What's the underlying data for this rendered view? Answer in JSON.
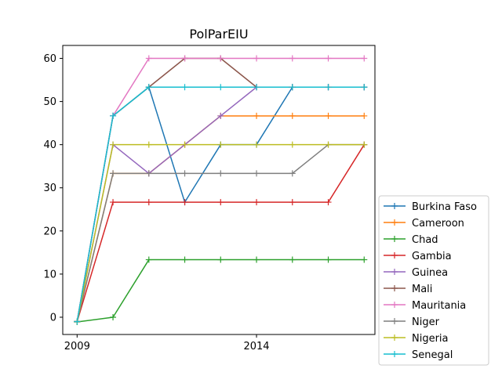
{
  "chart_data": {
    "type": "line",
    "title": "PolParEIU",
    "xlabel": "",
    "ylabel": "",
    "x": [
      2009,
      2010,
      2011,
      2012,
      2013,
      2014,
      2015,
      2016,
      2017
    ],
    "xticks": [
      2009,
      2014
    ],
    "xtick_labels": [
      "2009",
      "2014"
    ],
    "xlim": [
      2008.6,
      2017.3
    ],
    "yticks": [
      0,
      10,
      20,
      30,
      40,
      50,
      60
    ],
    "yticks_labels": [
      "0",
      "10",
      "20",
      "30",
      "40",
      "50",
      "60"
    ],
    "ylim": [
      -4,
      63
    ],
    "grid": false,
    "legend_position": "right",
    "marker": "+",
    "series": [
      {
        "name": "Burkina Faso",
        "color": "#1f77b4",
        "values": [
          -1,
          46.67,
          53.33,
          26.67,
          40,
          40,
          53.33,
          53.33,
          53.33
        ]
      },
      {
        "name": "Cameroon",
        "color": "#ff7f0e",
        "values": [
          -1,
          33.33,
          33.33,
          40,
          46.67,
          46.67,
          46.67,
          46.67,
          46.67
        ]
      },
      {
        "name": "Chad",
        "color": "#2ca02c",
        "values": [
          -1.1,
          0,
          13.33,
          13.33,
          13.33,
          13.33,
          13.33,
          13.33,
          13.33
        ]
      },
      {
        "name": "Gambia",
        "color": "#d62728",
        "values": [
          -1,
          26.67,
          26.67,
          26.67,
          26.67,
          26.67,
          26.67,
          26.67,
          40
        ]
      },
      {
        "name": "Guinea",
        "color": "#9467bd",
        "values": [
          -1,
          40,
          33.33,
          40,
          46.67,
          53.33,
          53.33,
          53.33,
          53.33
        ]
      },
      {
        "name": "Mali",
        "color": "#8c564b",
        "values": [
          -1,
          46.67,
          53.33,
          60,
          60,
          53.33,
          53.33,
          53.33,
          53.33
        ]
      },
      {
        "name": "Mauritania",
        "color": "#e377c2",
        "values": [
          -1,
          46.67,
          60,
          60,
          60,
          60,
          60,
          60,
          60
        ]
      },
      {
        "name": "Niger",
        "color": "#7f7f7f",
        "values": [
          -1,
          33.33,
          33.33,
          33.33,
          33.33,
          33.33,
          33.33,
          40,
          40
        ]
      },
      {
        "name": "Nigeria",
        "color": "#bcbd22",
        "values": [
          -1,
          40,
          40,
          40,
          40,
          40,
          40,
          40,
          40
        ]
      },
      {
        "name": "Senegal",
        "color": "#17becf",
        "values": [
          -1,
          46.67,
          53.33,
          53.33,
          53.33,
          53.33,
          53.33,
          53.33,
          53.33
        ]
      }
    ]
  }
}
